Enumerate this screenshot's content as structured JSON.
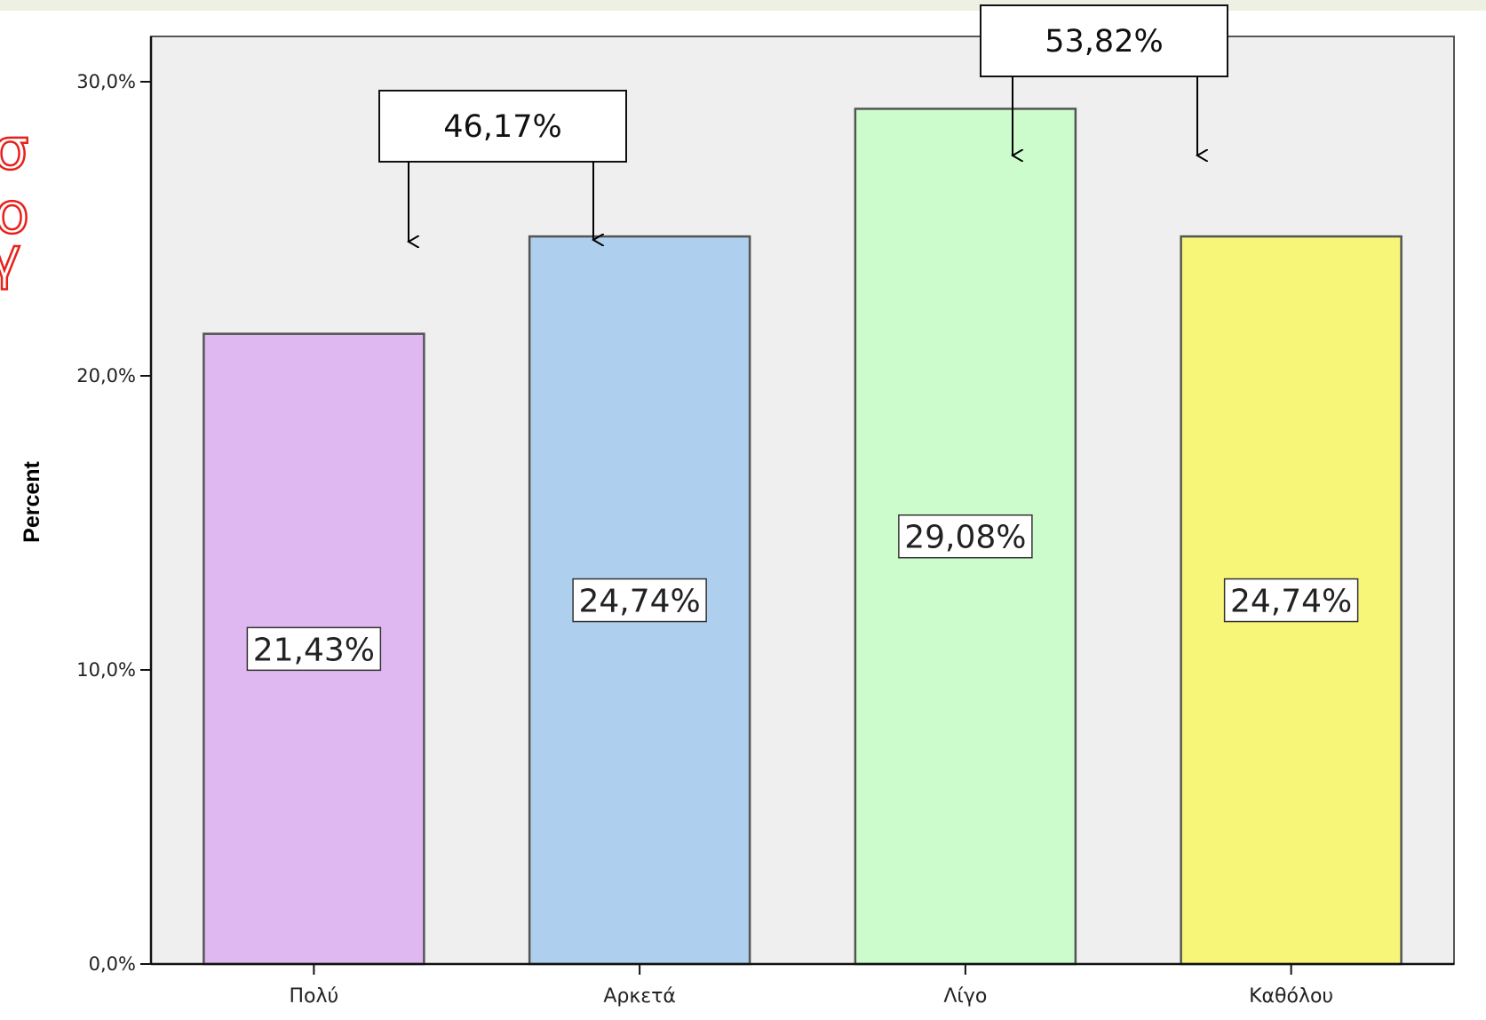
{
  "chart_data": {
    "type": "bar",
    "ylabel": "Percent",
    "xlabel": "",
    "ylim": [
      0,
      30
    ],
    "yticks": [
      0,
      10,
      20,
      30
    ],
    "ytick_labels": [
      "0,0%",
      "10,0%",
      "20,0%",
      "30,0%"
    ],
    "categories": [
      "Πολύ",
      "Αρκετά",
      "Λίγο",
      "Καθόλου"
    ],
    "values": [
      21.43,
      24.74,
      29.08,
      24.74
    ],
    "value_labels": [
      "21,43%",
      "24,74%",
      "29,08%",
      "24,74%"
    ],
    "colors": [
      "#dfb8f2",
      "#aecfee",
      "#ccfccc",
      "#f8f678"
    ],
    "grid": false,
    "annotations": [
      {
        "text": "46,17%",
        "groups": [
          "Πολύ",
          "Αρκετά"
        ]
      },
      {
        "text": "53,82%",
        "groups": [
          "Λίγο",
          "Καθόλου"
        ]
      }
    ]
  },
  "background": {
    "plot_fill": "#efefef",
    "page_fill": "#ffffff",
    "accent_red": "#e8201a"
  }
}
